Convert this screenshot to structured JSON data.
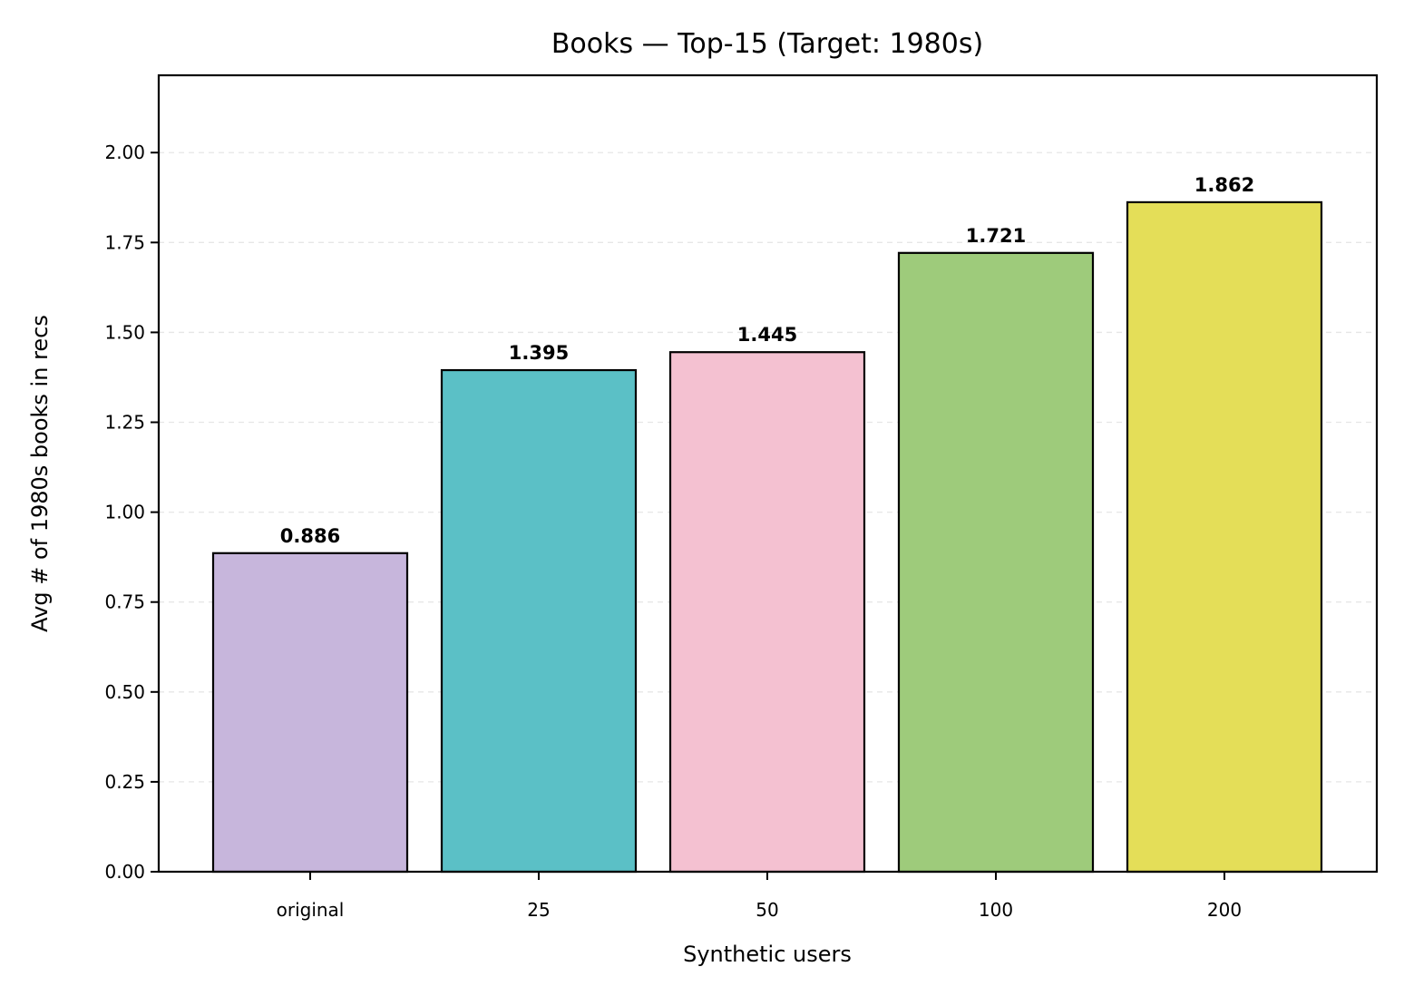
{
  "chart_data": {
    "type": "bar",
    "title": "Books — Top-15 (Target: 1980s)",
    "xlabel": "Synthetic users",
    "ylabel": "Avg # of 1980s books in recs",
    "categories": [
      "original",
      "25",
      "50",
      "100",
      "200"
    ],
    "values": [
      0.886,
      1.395,
      1.445,
      1.721,
      1.862
    ],
    "value_labels": [
      "0.886",
      "1.395",
      "1.445",
      "1.721",
      "1.862"
    ],
    "colors": [
      "#c7b6dc",
      "#5bc0c6",
      "#f4c1d1",
      "#9ecb7b",
      "#e4de58"
    ],
    "ylim": [
      0,
      2.215
    ],
    "yticks": [
      0,
      0.25,
      0.5,
      0.75,
      1.0,
      1.25,
      1.5,
      1.75,
      2.0
    ],
    "ytick_labels": [
      "0.00",
      "0.25",
      "0.50",
      "0.75",
      "1.00",
      "1.25",
      "1.50",
      "1.75",
      "2.00"
    ],
    "grid": "y-dashed",
    "legend": "none"
  }
}
